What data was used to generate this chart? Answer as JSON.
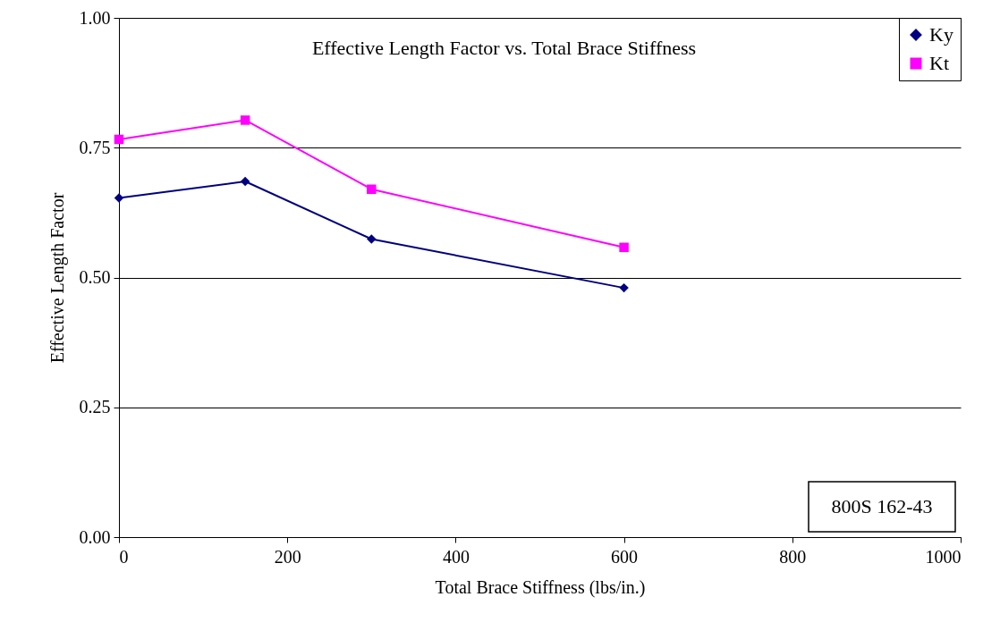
{
  "chart_data": {
    "type": "line",
    "title": "Effective Length Factor vs. Total Brace Stiffness",
    "xlabel": "Total Brace Stiffness (lbs/in.)",
    "ylabel": "Effective Length Factor",
    "x": [
      0,
      150,
      300,
      600
    ],
    "series": [
      {
        "name": "Ky",
        "color": "#000080",
        "marker": "diamond",
        "values": [
          0.653,
          0.685,
          0.574,
          0.48
        ]
      },
      {
        "name": "Kt",
        "color": "#ff00ff",
        "marker": "square",
        "values": [
          0.766,
          0.803,
          0.67,
          0.558
        ]
      }
    ],
    "xlim": [
      0,
      1000
    ],
    "xticks": [
      0,
      200,
      400,
      600,
      800,
      1000
    ],
    "ylim": [
      0,
      1
    ],
    "yticks": [
      {
        "value": 0,
        "label": "0.00"
      },
      {
        "value": 0.25,
        "label": "0.25"
      },
      {
        "value": 0.5,
        "label": "0.50"
      },
      {
        "value": 0.75,
        "label": "0.75"
      },
      {
        "value": 1,
        "label": "1.00"
      }
    ],
    "grid": "y",
    "legend": "top right",
    "annotations": [
      "800S 162-43"
    ]
  }
}
